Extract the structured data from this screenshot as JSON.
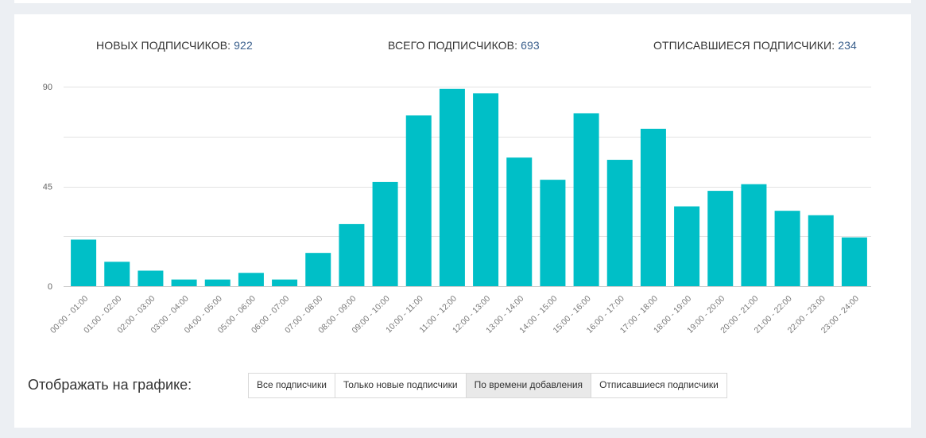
{
  "stats": {
    "new_label": "НОВЫХ ПОДПИСЧИКОВ:",
    "new_value": "922",
    "total_label": "ВСЕГО ПОДПИСЧИКОВ:",
    "total_value": "693",
    "unsub_label": "ОТПИСАВШИЕСЯ ПОДПИСЧИКИ:",
    "unsub_value": "234"
  },
  "controls": {
    "label": "Отображать на графике:",
    "options": [
      {
        "label": "Все подписчики",
        "active": false
      },
      {
        "label": "Только новые подписчики",
        "active": false
      },
      {
        "label": "По времени добавления",
        "active": true
      },
      {
        "label": "Отписавшиеся подписчики",
        "active": false
      }
    ]
  },
  "chart_data": {
    "type": "bar",
    "categories": [
      "00:00 - 01:00",
      "01:00 - 02:00",
      "02:00 - 03:00",
      "03:00 - 04:00",
      "04:00 - 05:00",
      "05:00 - 06:00",
      "06:00 - 07:00",
      "07:00 - 08:00",
      "08:00 - 09:00",
      "09:00 - 10:00",
      "10:00 - 11:00",
      "11:00 - 12:00",
      "12:00 - 13:00",
      "13:00 - 14:00",
      "14:00 - 15:00",
      "15:00 - 16:00",
      "16:00 - 17:00",
      "17:00 - 18:00",
      "18:00 - 19:00",
      "19:00 - 20:00",
      "20:00 - 21:00",
      "21:00 - 22:00",
      "22:00 - 23:00",
      "23:00 - 24:00"
    ],
    "values": [
      21,
      11,
      7,
      3,
      3,
      6,
      3,
      15,
      28,
      47,
      77,
      89,
      87,
      58,
      48,
      78,
      57,
      71,
      36,
      43,
      46,
      34,
      32,
      22
    ],
    "ylim": [
      0,
      90
    ],
    "yticks": [
      "0",
      "45",
      "90"
    ],
    "grid": true,
    "bar_color": "#00bfc7"
  }
}
